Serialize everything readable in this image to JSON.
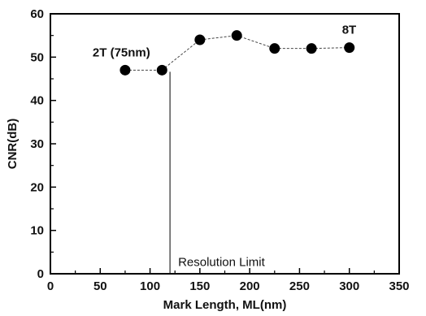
{
  "chart_data": {
    "type": "scatter",
    "xlabel": "Mark Length, ML(nm)",
    "ylabel": "CNR(dB)",
    "xlim": [
      0,
      350
    ],
    "ylim": [
      0,
      60
    ],
    "xticks": [
      0,
      50,
      100,
      150,
      200,
      250,
      300,
      350
    ],
    "yticks": [
      0,
      10,
      20,
      30,
      40,
      50,
      60
    ],
    "grid": false,
    "series": [
      {
        "x": [
          75,
          112,
          150,
          187,
          225,
          262,
          300
        ],
        "y": [
          47,
          47,
          54,
          55,
          52,
          52,
          52.2
        ]
      }
    ],
    "annotations": [
      {
        "id": "label-2t",
        "text": "2T (75nm)",
        "x": 75,
        "y": 47
      },
      {
        "id": "label-8t",
        "text": "8T",
        "x": 300,
        "y": 52.2
      },
      {
        "id": "resolution-limit",
        "text": "Resolution Limit",
        "x": 120,
        "y": 2
      }
    ],
    "reference_lines": [
      {
        "id": "resolution-limit-line",
        "x": 120
      }
    ],
    "colors": {
      "marker": "#000000",
      "line": "#444444",
      "axis": "#000000"
    }
  }
}
